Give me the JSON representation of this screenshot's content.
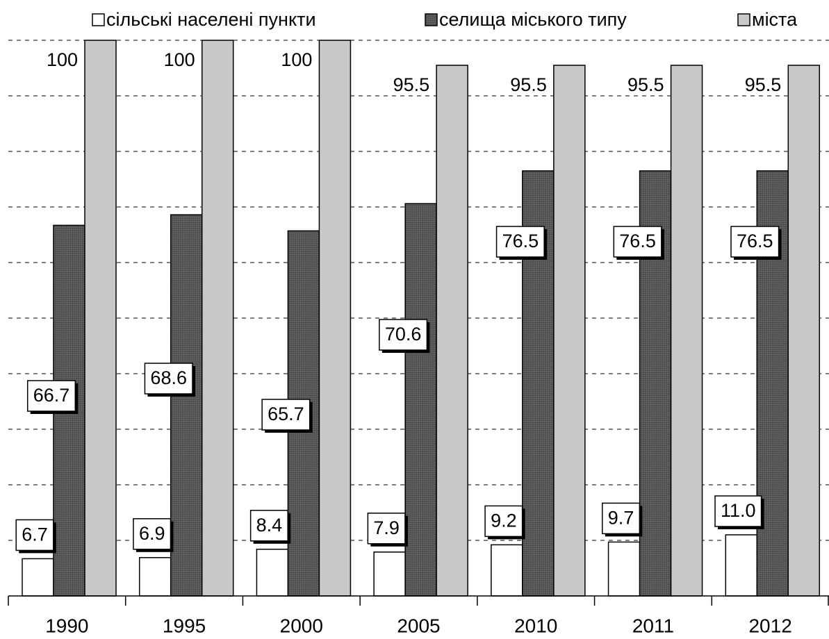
{
  "chart_data": {
    "type": "bar",
    "categories": [
      "1990",
      "1995",
      "2000",
      "2005",
      "2010",
      "2011",
      "2012"
    ],
    "series": [
      {
        "name": "сільські населені пункти",
        "color": "#ffffff",
        "values": [
          6.7,
          6.9,
          8.4,
          7.9,
          9.2,
          9.7,
          11.0
        ],
        "value_labels": [
          "6.7",
          "6.9",
          "8.4",
          "7.9",
          "9.2",
          "9.7",
          "11.0"
        ]
      },
      {
        "name": "селища міського типу",
        "color": "#575757",
        "values": [
          66.7,
          68.6,
          65.7,
          70.6,
          76.5,
          76.5,
          76.5
        ]
      },
      {
        "name": "міста",
        "color": "#c8c8c8",
        "values": [
          100,
          100,
          100,
          95.5,
          95.5,
          95.5,
          95.5
        ]
      }
    ],
    "ylim": [
      0,
      100
    ],
    "yticks": [
      0,
      10,
      20,
      30,
      40,
      50,
      60,
      70,
      80,
      90,
      100
    ],
    "grid": true,
    "legend": "top"
  }
}
